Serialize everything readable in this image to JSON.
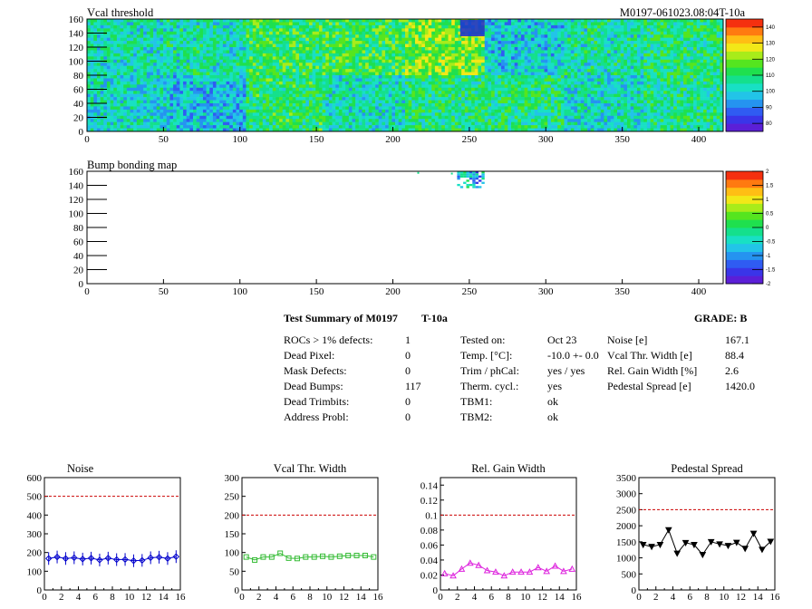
{
  "header": {
    "title": "Vcal threshold",
    "run_id": "M0197-061023.08:04T-10a"
  },
  "bump_map": {
    "title": "Bump bonding map"
  },
  "colors": {
    "palette": [
      "#5b1fd7",
      "#3a35e8",
      "#2f5cf2",
      "#2593f0",
      "#22c4e8",
      "#18e0c4",
      "#14e08c",
      "#1fe04e",
      "#55e51f",
      "#a8ec1a",
      "#f2e818",
      "#ffbe14",
      "#ff7a10",
      "#f5300f"
    ],
    "limit_line": "#cc0000",
    "noise": "#0000cc",
    "vcal_width": "#33bb33",
    "gain_width": "#dd22dd",
    "pedestal": "#000000"
  },
  "summary": {
    "title": "Test Summary of M0197",
    "temp_tag": "T-10a",
    "grade": "GRADE:  B",
    "col1": [
      {
        "label": "ROCs > 1% defects:",
        "value": "1"
      },
      {
        "label": "Dead Pixel:",
        "value": "0"
      },
      {
        "label": "Mask Defects:",
        "value": "0"
      },
      {
        "label": "Dead Bumps:",
        "value": "117"
      },
      {
        "label": "Dead Trimbits:",
        "value": "0"
      },
      {
        "label": "Address Probl:",
        "value": "0"
      }
    ],
    "col2": [
      {
        "label": "Tested on:",
        "value": "Oct 23"
      },
      {
        "label": "Temp. [°C]:",
        "value": "-10.0 +- 0.0"
      },
      {
        "label": "Trim / phCal:",
        "value": "yes / yes"
      },
      {
        "label": "Therm. cycl.:",
        "value": "yes"
      },
      {
        "label": "TBM1:",
        "value": "ok"
      },
      {
        "label": "TBM2:",
        "value": "ok"
      }
    ],
    "col3": [
      {
        "label": "Noise [e]",
        "value": "167.1"
      },
      {
        "label": "Vcal Thr. Width [e]",
        "value": "88.4"
      },
      {
        "label": "Rel. Gain Width [%]",
        "value": "2.6"
      },
      {
        "label": "Pedestal Spread [e]",
        "value": "1420.0"
      }
    ]
  },
  "chart_data": [
    {
      "type": "heatmap",
      "title": "Vcal threshold",
      "xlim": [
        0,
        416
      ],
      "ylim": [
        0,
        160
      ],
      "xticks": [
        0,
        50,
        100,
        150,
        200,
        250,
        300,
        350,
        400
      ],
      "yticks": [
        0,
        20,
        40,
        60,
        80,
        100,
        120,
        140,
        160
      ],
      "color_scale": {
        "min": 75,
        "max": 145,
        "ticks": [
          80,
          90,
          100,
          110,
          120,
          130,
          140
        ]
      },
      "roc_means": {
        "top_row": [
          104,
          105,
          112,
          113,
          119,
          99,
          105,
          109,
          102,
          99,
          104,
          101,
          98,
          96,
          102,
          104
        ],
        "bottom_row": [
          102,
          98,
          110,
          104,
          109,
          108,
          102,
          108,
          115,
          103,
          108,
          112,
          104,
          99,
          103,
          107
        ]
      }
    },
    {
      "type": "heatmap",
      "title": "Bump bonding map",
      "xlim": [
        0,
        416
      ],
      "ylim": [
        0,
        160
      ],
      "xticks": [
        0,
        50,
        100,
        150,
        200,
        250,
        300,
        350,
        400
      ],
      "yticks": [
        0,
        20,
        40,
        60,
        80,
        100,
        120,
        140,
        160
      ],
      "color_scale": {
        "min": -2,
        "max": 2,
        "ticks": [
          -2,
          -1.5,
          -1,
          -0.5,
          0,
          0.5,
          1,
          1.5,
          2
        ]
      },
      "defect_region": {
        "x": [
          242,
          260
        ],
        "y": [
          136,
          160
        ]
      }
    },
    {
      "type": "line",
      "title": "Noise",
      "x": [
        0,
        1,
        2,
        3,
        4,
        5,
        6,
        7,
        8,
        9,
        10,
        11,
        12,
        13,
        14,
        15
      ],
      "values": [
        168,
        176,
        168,
        172,
        165,
        170,
        160,
        170,
        162,
        163,
        156,
        158,
        172,
        175,
        168,
        178
      ],
      "xlim": [
        0,
        16
      ],
      "ylim": [
        0,
        600
      ],
      "xticks": [
        0,
        2,
        4,
        6,
        8,
        10,
        12,
        14,
        16
      ],
      "yticks": [
        0,
        100,
        200,
        300,
        400,
        500,
        600
      ],
      "limit": 500,
      "marker": "diamond"
    },
    {
      "type": "line",
      "title": "Vcal Thr. Width",
      "x": [
        0,
        1,
        2,
        3,
        4,
        5,
        6,
        7,
        8,
        9,
        10,
        11,
        12,
        13,
        14,
        15
      ],
      "values": [
        88,
        80,
        88,
        88,
        98,
        85,
        84,
        88,
        88,
        90,
        88,
        90,
        92,
        92,
        92,
        88
      ],
      "xlim": [
        0,
        16
      ],
      "ylim": [
        0,
        300
      ],
      "xticks": [
        0,
        2,
        4,
        6,
        8,
        10,
        12,
        14,
        16
      ],
      "yticks": [
        0,
        50,
        100,
        150,
        200,
        250,
        300
      ],
      "limit": 200,
      "marker": "square"
    },
    {
      "type": "line",
      "title": "Rel. Gain Width",
      "x": [
        0,
        1,
        2,
        3,
        4,
        5,
        6,
        7,
        8,
        9,
        10,
        11,
        12,
        13,
        14,
        15
      ],
      "values": [
        0.022,
        0.019,
        0.028,
        0.036,
        0.033,
        0.026,
        0.024,
        0.019,
        0.024,
        0.024,
        0.024,
        0.03,
        0.025,
        0.032,
        0.025,
        0.028
      ],
      "xlim": [
        0,
        16
      ],
      "ylim": [
        0,
        0.15
      ],
      "xticks": [
        0,
        2,
        4,
        6,
        8,
        10,
        12,
        14,
        16
      ],
      "yticks": [
        0,
        0.02,
        0.04,
        0.06,
        0.08,
        0.1,
        0.12,
        0.14
      ],
      "ytick_labels": [
        "0",
        "0.02",
        "0.04",
        "0.06",
        "0.08",
        "0.1",
        "0.12",
        "0.14"
      ],
      "limit": 0.1,
      "marker": "triangle"
    },
    {
      "type": "line",
      "title": "Pedestal Spread",
      "x": [
        0,
        1,
        2,
        3,
        4,
        5,
        6,
        7,
        8,
        9,
        10,
        11,
        12,
        13,
        14,
        15
      ],
      "values": [
        1410,
        1350,
        1410,
        1870,
        1140,
        1470,
        1410,
        1100,
        1500,
        1430,
        1380,
        1480,
        1290,
        1760,
        1260,
        1510
      ],
      "xlim": [
        0,
        16
      ],
      "ylim": [
        0,
        3500
      ],
      "xticks": [
        0,
        2,
        4,
        6,
        8,
        10,
        12,
        14,
        16
      ],
      "yticks": [
        0,
        500,
        1000,
        1500,
        2000,
        2500,
        3000,
        3500
      ],
      "limit": 2500,
      "marker": "triangle-down"
    }
  ]
}
